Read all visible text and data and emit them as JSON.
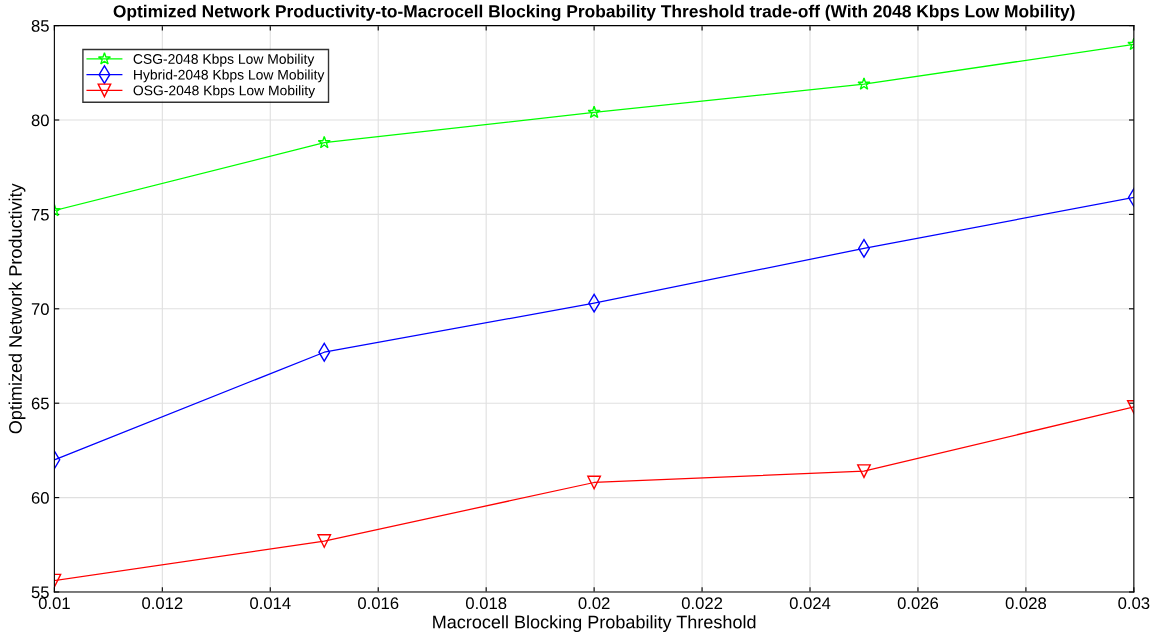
{
  "chart_data": {
    "type": "line",
    "title": "Optimized Network Productivity-to-Macrocell Blocking Probability Threshold trade-off (With 2048 Kbps Low Mobility)",
    "xlabel": "Macrocell Blocking Probability Threshold",
    "ylabel": "Optimized Network Productivity",
    "x": [
      0.01,
      0.015,
      0.02,
      0.025,
      0.03
    ],
    "series": [
      {
        "name": "CSG-2048 Kbps Low Mobility",
        "color": "#00ff00",
        "marker": "star",
        "values": [
          75.2,
          78.8,
          80.4,
          81.9,
          84.0
        ]
      },
      {
        "name": "Hybrid-2048 Kbps Low Mobility",
        "color": "#0000ff",
        "marker": "diamond",
        "values": [
          62.0,
          67.7,
          70.3,
          73.2,
          75.9
        ]
      },
      {
        "name": "OSG-2048 Kbps Low Mobility",
        "color": "#ff0000",
        "marker": "triangle_down",
        "values": [
          55.6,
          57.7,
          60.8,
          61.4,
          64.8
        ]
      }
    ],
    "xlim": [
      0.01,
      0.03
    ],
    "xticks": [
      0.01,
      0.012,
      0.014,
      0.016,
      0.018,
      0.02,
      0.022,
      0.024,
      0.026,
      0.028,
      0.03
    ],
    "ylim": [
      55,
      85
    ],
    "yticks": [
      55,
      60,
      65,
      70,
      75,
      80,
      85
    ],
    "grid": true,
    "legend": "top left",
    "line_style": "solid"
  }
}
